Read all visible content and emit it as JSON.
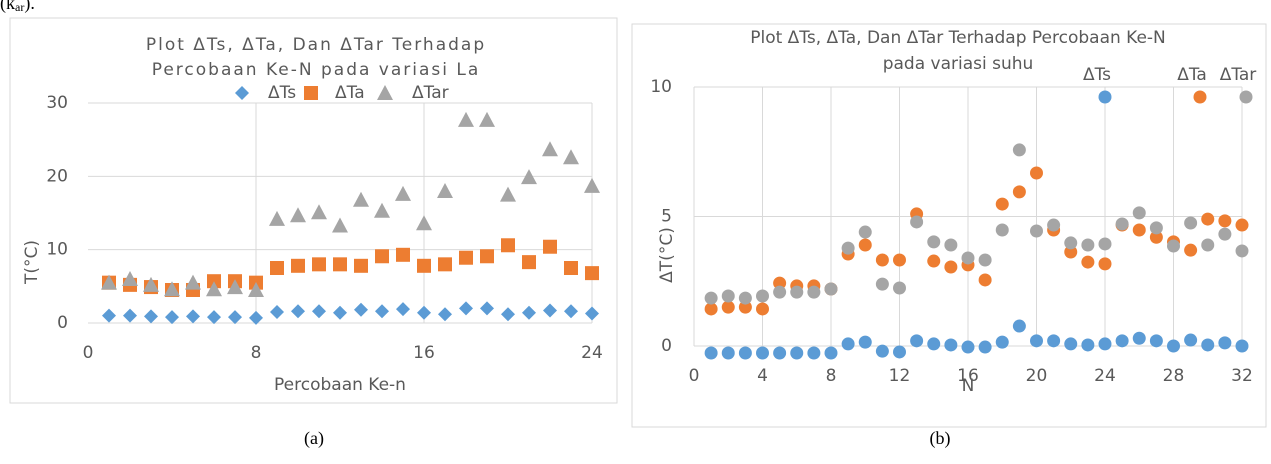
{
  "fragment": {
    "text": "(k",
    "sub": "ar",
    "tail": ")."
  },
  "captions": [
    "(a)",
    "(b)"
  ],
  "chart_data": [
    {
      "type": "scatter",
      "title": [
        "Plot ΔTs, ΔTa, Dan ΔTar Terhadap",
        "Percobaan Ke-N pada variasi La"
      ],
      "xlabel": "Percobaan Ke-n",
      "ylabel": "T(°C)",
      "x": [
        1,
        2,
        3,
        4,
        5,
        6,
        7,
        8,
        9,
        10,
        11,
        12,
        13,
        14,
        15,
        16,
        17,
        18,
        19,
        20,
        21,
        22,
        23,
        24
      ],
      "xlim": [
        0,
        24
      ],
      "xticks": [
        0,
        8,
        16,
        24
      ],
      "ylim": [
        0,
        30
      ],
      "yticks": [
        0,
        10,
        20,
        30
      ],
      "grid": true,
      "legend": "top",
      "series": [
        {
          "name": "ΔTs",
          "color": "#5b9bd5",
          "marker": "diamond",
          "values": [
            1,
            1,
            0.9,
            0.8,
            0.9,
            0.8,
            0.8,
            0.7,
            1.5,
            1.6,
            1.6,
            1.4,
            1.8,
            1.6,
            1.9,
            1.4,
            1.2,
            2,
            2,
            1.2,
            1.4,
            1.7,
            1.6,
            1.3
          ]
        },
        {
          "name": "ΔTa",
          "color": "#ed7d31",
          "marker": "square",
          "values": [
            5.5,
            5.2,
            4.9,
            4.5,
            4.5,
            5.7,
            5.7,
            5.5,
            7.5,
            7.8,
            8,
            8,
            7.8,
            9.1,
            9.3,
            7.8,
            8,
            8.9,
            9.1,
            10.6,
            8.3,
            10.4,
            7.5,
            6.8
          ]
        },
        {
          "name": "ΔTar",
          "color": "#a5a5a5",
          "marker": "triangle",
          "values": [
            5.5,
            6,
            5.2,
            4.6,
            5.5,
            4.6,
            4.9,
            4.5,
            14.2,
            14.7,
            15.1,
            13.3,
            16.8,
            15.3,
            17.6,
            13.6,
            18,
            27.7,
            27.7,
            17.5,
            19.9,
            23.7,
            22.6,
            18.7
          ]
        }
      ]
    },
    {
      "type": "scatter",
      "title": [
        "Plot ΔTs, ΔTa, Dan ΔTar Terhadap Percobaan Ke-N",
        "pada variasi suhu"
      ],
      "xlabel": "N",
      "ylabel": "ΔT(°C)",
      "x": [
        1,
        2,
        3,
        4,
        5,
        6,
        7,
        8,
        9,
        10,
        11,
        12,
        13,
        14,
        15,
        16,
        17,
        18,
        19,
        20,
        21,
        22,
        23,
        24,
        25,
        26,
        27,
        28,
        29,
        30,
        31,
        32
      ],
      "xlim": [
        0,
        32
      ],
      "xticks": [
        0,
        4,
        8,
        12,
        16,
        20,
        24,
        28,
        32
      ],
      "ylim": [
        0,
        10
      ],
      "yticks": [
        0,
        5,
        10
      ],
      "grid": true,
      "legend": "top-right",
      "series": [
        {
          "name": "ΔTs",
          "color": "#5b9bd5",
          "marker": "circle",
          "values": [
            -0.27,
            -0.27,
            -0.27,
            -0.27,
            -0.27,
            -0.27,
            -0.27,
            -0.27,
            0.08,
            0.15,
            -0.2,
            -0.23,
            0.2,
            0.08,
            0.04,
            -0.04,
            -0.04,
            0.15,
            0.77,
            0.2,
            0.2,
            0.08,
            0.04,
            0.08,
            0.2,
            0.3,
            0.2,
            0,
            0.23,
            0.04,
            0.12,
            0
          ]
        },
        {
          "name": "ΔTa",
          "color": "#ed7d31",
          "marker": "circle",
          "values": [
            1.43,
            1.5,
            1.5,
            1.43,
            2.43,
            2.32,
            2.32,
            2.2,
            3.55,
            3.9,
            3.32,
            3.32,
            5.1,
            3.28,
            3.05,
            3.13,
            2.55,
            5.48,
            5.95,
            6.68,
            4.48,
            3.63,
            3.24,
            3.17,
            4.67,
            4.48,
            4.2,
            4.02,
            3.7,
            4.9,
            4.83,
            4.67
          ]
        },
        {
          "name": "ΔTar",
          "color": "#a5a5a5",
          "marker": "circle",
          "values": [
            1.85,
            1.93,
            1.85,
            1.93,
            2.08,
            2.08,
            2.08,
            2.2,
            3.78,
            4.4,
            2.39,
            2.24,
            4.79,
            4.02,
            3.9,
            3.4,
            3.32,
            4.48,
            7.57,
            4.44,
            4.67,
            3.98,
            3.9,
            3.94,
            4.71,
            5.14,
            4.56,
            3.86,
            4.75,
            3.9,
            4.32,
            3.67
          ]
        }
      ]
    }
  ]
}
